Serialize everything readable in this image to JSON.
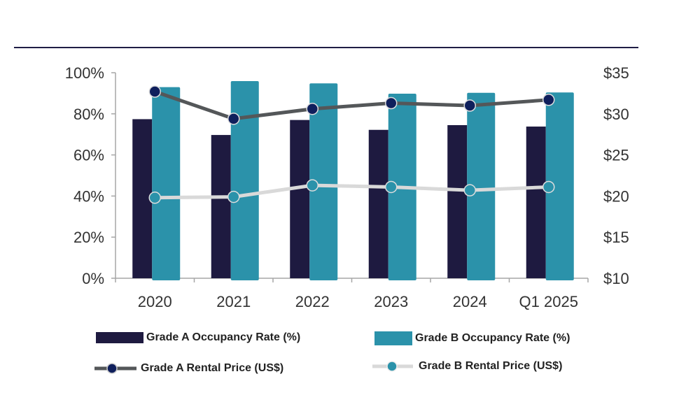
{
  "chart_data": {
    "type": "bar",
    "categories": [
      "2020",
      "2021",
      "2022",
      "2023",
      "2024",
      "Q1 2025"
    ],
    "left_axis": {
      "ticks": [
        "0%",
        "20%",
        "40%",
        "60%",
        "80%",
        "100%"
      ],
      "ylim": [
        0,
        100
      ]
    },
    "right_axis": {
      "ticks": [
        "$10",
        "$15",
        "$20",
        "$25",
        "$30",
        "$35"
      ],
      "ylim": [
        10,
        35
      ]
    },
    "grid": false,
    "legend_position": "bottom",
    "series": [
      {
        "name": "Grade A Occupancy Rate (%)",
        "type": "bar",
        "axis": "left",
        "color": "#1e1a40",
        "values": [
          77.4,
          69.7,
          77.0,
          72.2,
          74.5,
          73.8
        ]
      },
      {
        "name": "Grade B Occupancy Rate (%)",
        "type": "bar",
        "axis": "left",
        "color": "#2b92aa",
        "values": [
          93.0,
          95.9,
          94.8,
          89.8,
          90.2,
          90.4
        ]
      },
      {
        "name": "Grade A Rental Price (US$)",
        "type": "line",
        "axis": "right",
        "color": "#545759",
        "marker_color": "#0f1f5c",
        "values": [
          32.7,
          29.4,
          30.6,
          31.3,
          31.0,
          31.7
        ]
      },
      {
        "name": "Grade B Rental Price (US$)",
        "type": "line",
        "axis": "right",
        "color": "#d9d9d9",
        "marker_color": "#2b92aa",
        "values": [
          19.8,
          19.9,
          21.3,
          21.1,
          20.7,
          21.1
        ]
      }
    ]
  }
}
